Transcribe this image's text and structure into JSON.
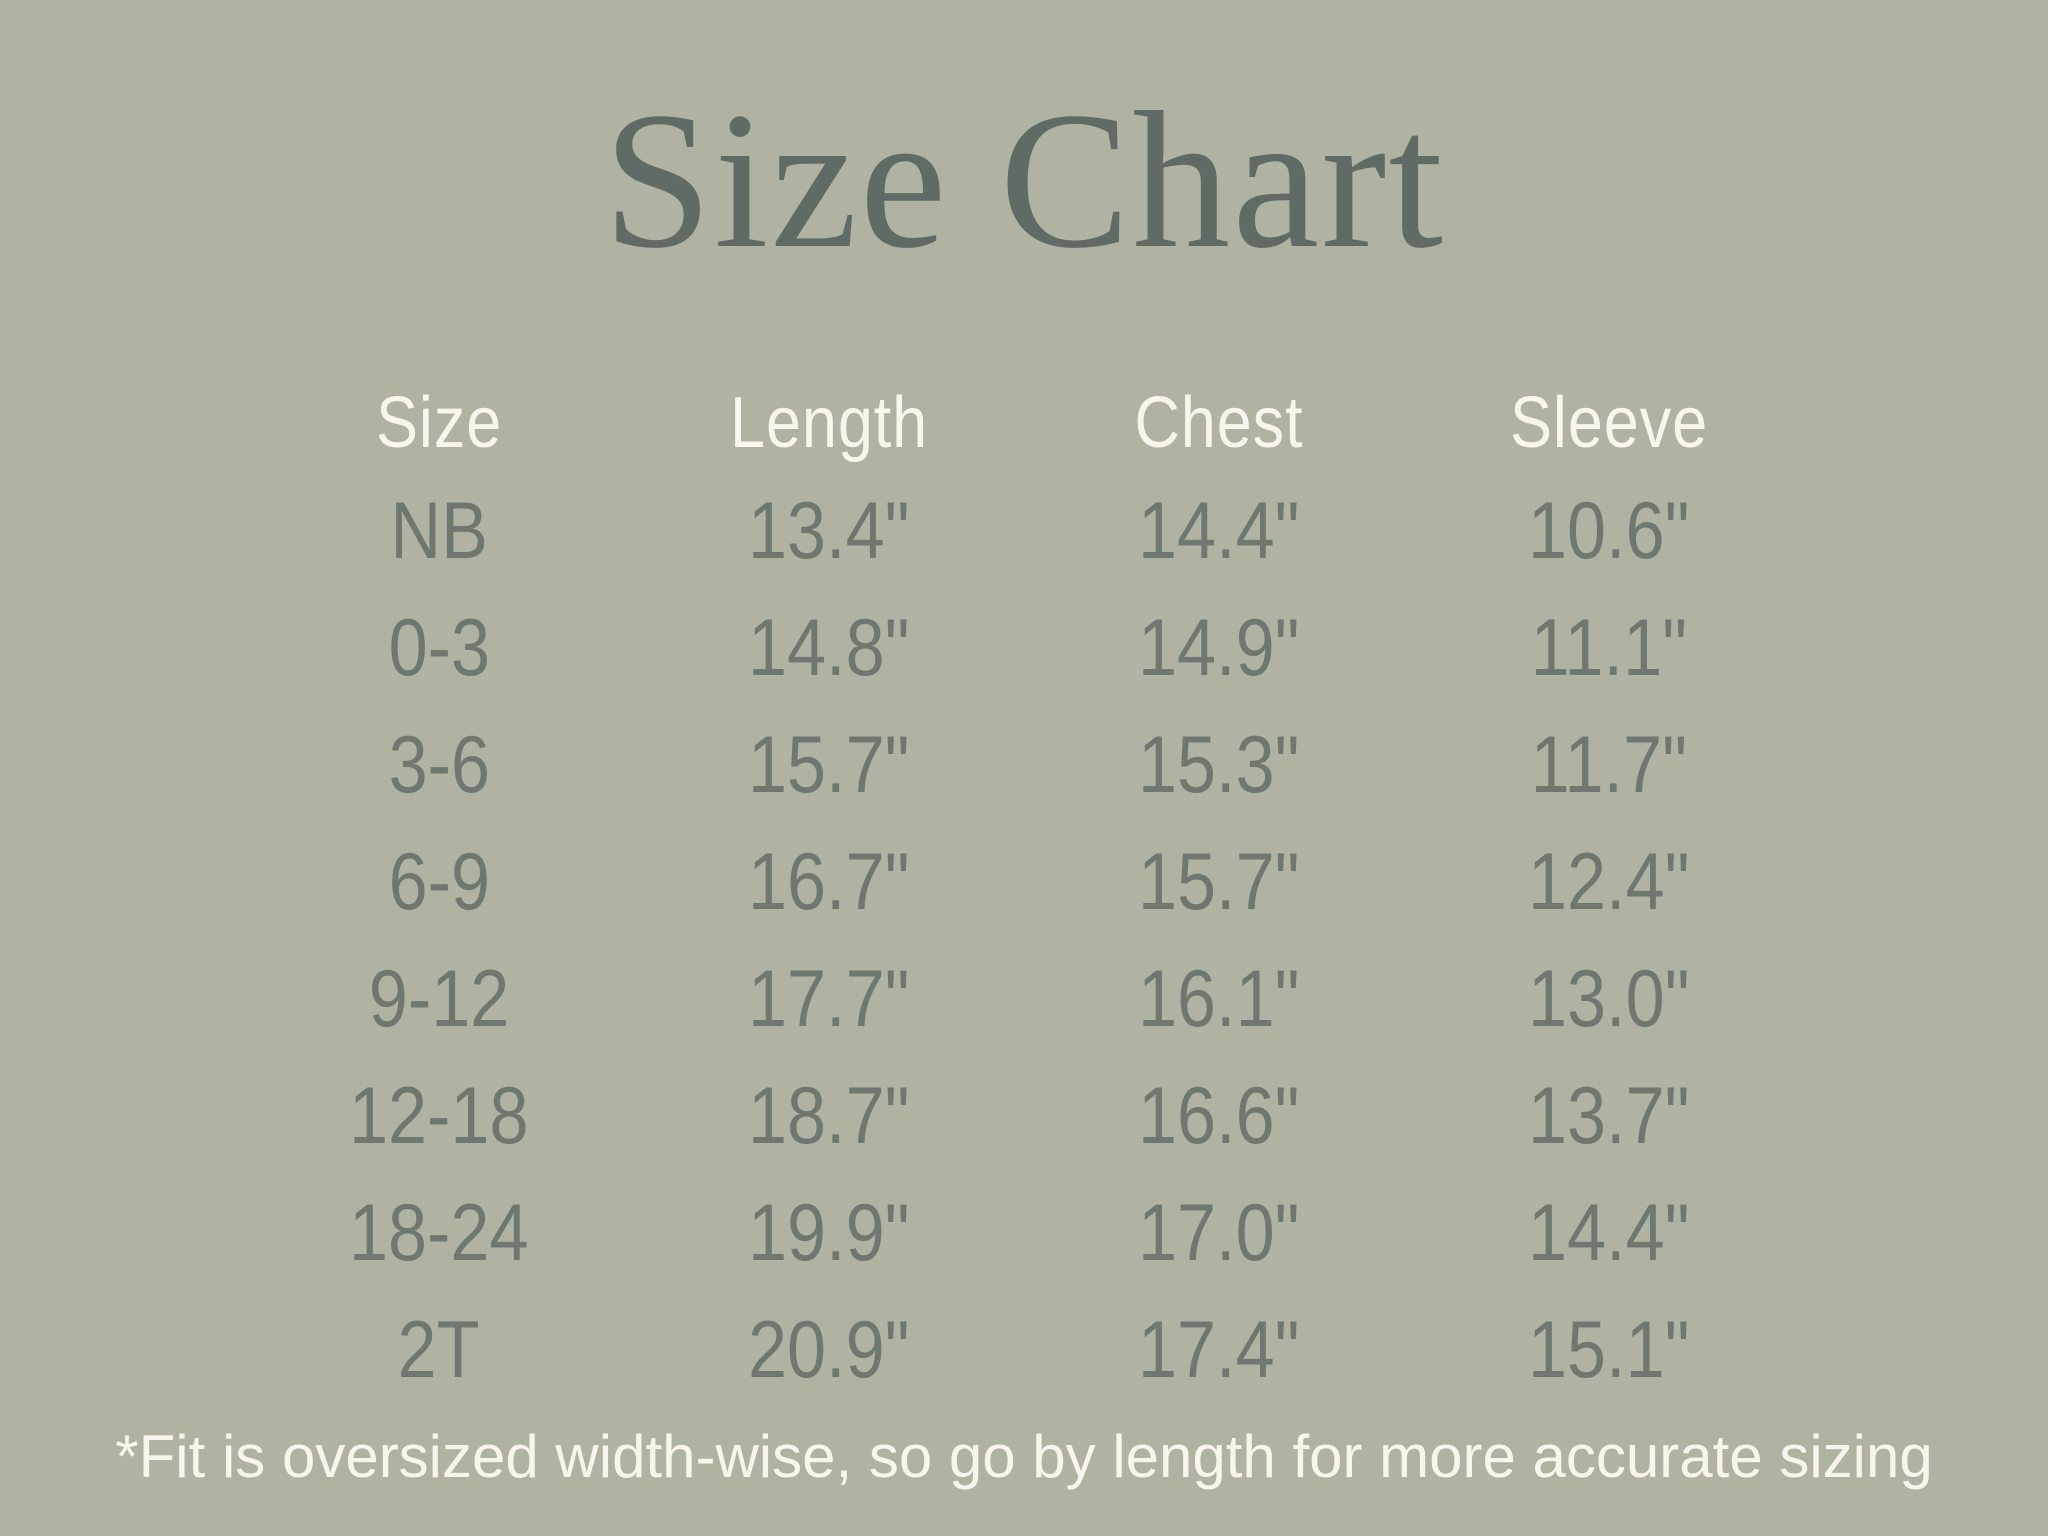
{
  "title": "Size Chart",
  "chart_data": {
    "type": "table",
    "title": "Size Chart",
    "columns": [
      "Size",
      "Length",
      "Chest",
      "Sleeve"
    ],
    "rows": [
      [
        "NB",
        "13.4\"",
        "14.4\"",
        "10.6\""
      ],
      [
        "0-3",
        "14.8\"",
        "14.9\"",
        "11.1\""
      ],
      [
        "3-6",
        "15.7\"",
        "15.3\"",
        "11.7\""
      ],
      [
        "6-9",
        "16.7\"",
        "15.7\"",
        "12.4\""
      ],
      [
        "9-12",
        "17.7\"",
        "16.1\"",
        "13.0\""
      ],
      [
        "12-18",
        "18.7\"",
        "16.6\"",
        "13.7\""
      ],
      [
        "18-24",
        "19.9\"",
        "17.0\"",
        "14.4\""
      ],
      [
        "2T",
        "20.9\"",
        "17.4\"",
        "15.1\""
      ]
    ],
    "units": "inches",
    "footnote": "*Fit is oversized width-wise, so go by length for more accurate sizing"
  },
  "colors": {
    "background": "#b0b3a2",
    "title_text": "#606b65",
    "table_data_text": "#6f7870",
    "header_and_footnote_text": "#f8f6ec"
  }
}
